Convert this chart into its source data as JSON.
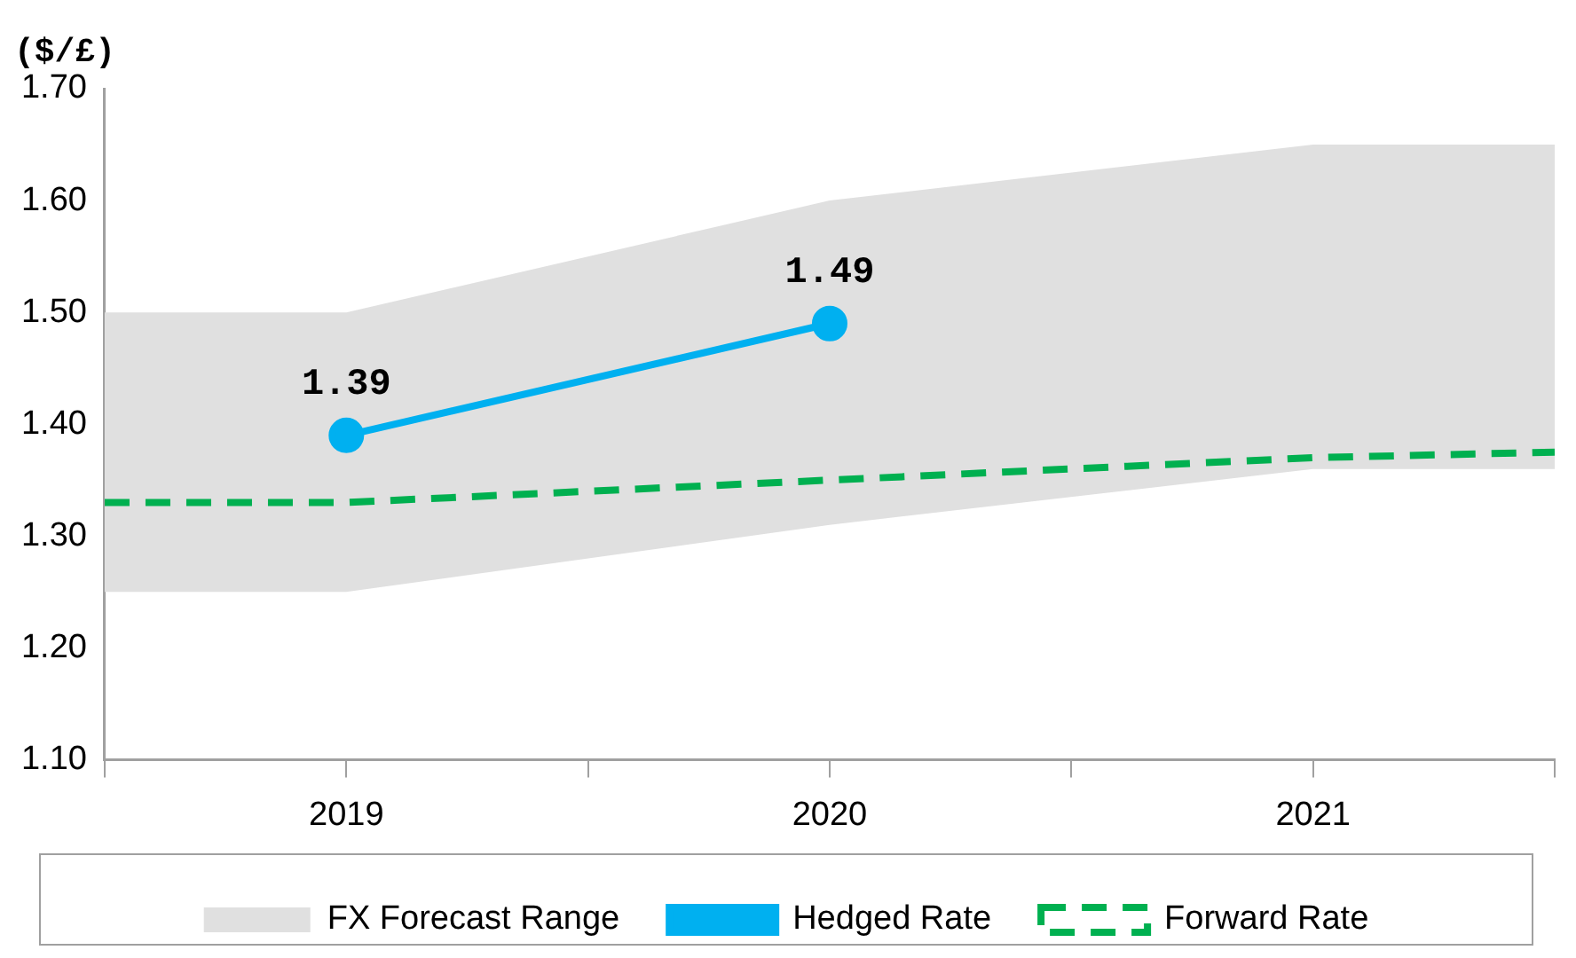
{
  "chart_data": {
    "type": "line",
    "ylabel": "($/£)",
    "xlim": [
      2018.5,
      2021.5
    ],
    "xticks": [
      {
        "value": 2018.5,
        "label": null
      },
      2019,
      {
        "value": 2019.5,
        "label": null
      },
      2020,
      {
        "value": 2020.5,
        "label": null
      },
      2021,
      {
        "value": 2021.5,
        "label": null
      }
    ],
    "ylim": [
      1.1,
      1.7
    ],
    "yticks": [
      {
        "value": 1.1,
        "label": "1.10"
      },
      {
        "value": 1.2,
        "label": "1.20"
      },
      {
        "value": 1.3,
        "label": "1.30"
      },
      {
        "value": 1.4,
        "label": "1.40"
      },
      {
        "value": 1.5,
        "label": "1.50"
      },
      {
        "value": 1.6,
        "label": "1.60"
      },
      {
        "value": 1.7,
        "label": "1.70"
      }
    ],
    "grid": false,
    "legend": "bottom",
    "series": [
      {
        "type": "area",
        "name": "FX Forecast Range",
        "color": "#e0e0e0",
        "x": [
          2018.5,
          2019,
          2020,
          2021,
          2021.5
        ],
        "values": [
          null,
          null,
          null,
          null,
          null
        ],
        "lower": [
          1.25,
          1.25,
          1.31,
          1.36,
          1.36
        ],
        "upper": [
          1.5,
          1.5,
          1.6,
          1.65,
          1.65
        ]
      },
      {
        "name": "Hedged Rate",
        "color": "#00b0f0",
        "x": [
          2019,
          2020
        ],
        "values": [
          1.39,
          1.49
        ],
        "value_labels": [
          "1.39",
          "1.49"
        ],
        "marker": "circle",
        "line_style": "solid"
      },
      {
        "name": "Forward Rate",
        "color": "#00b050",
        "x": [
          2018.5,
          2019,
          2019.5,
          2020,
          2020.5,
          2021,
          2021.5
        ],
        "values": [
          1.33,
          1.33,
          1.34,
          1.35,
          1.36,
          1.37,
          1.375
        ],
        "marker": "none",
        "line_style": "dashed"
      }
    ]
  }
}
